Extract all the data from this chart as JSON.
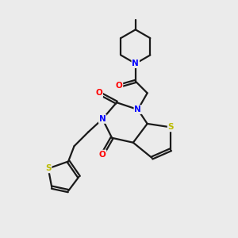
{
  "background_color": "#ebebeb",
  "bond_color": "#1a1a1a",
  "N_color": "#0000ff",
  "O_color": "#ff0000",
  "S_color": "#bbbb00",
  "line_width": 1.6,
  "figsize": [
    3.0,
    3.0
  ],
  "dpi": 100,
  "xlim": [
    0,
    10
  ],
  "ylim": [
    0,
    10
  ]
}
